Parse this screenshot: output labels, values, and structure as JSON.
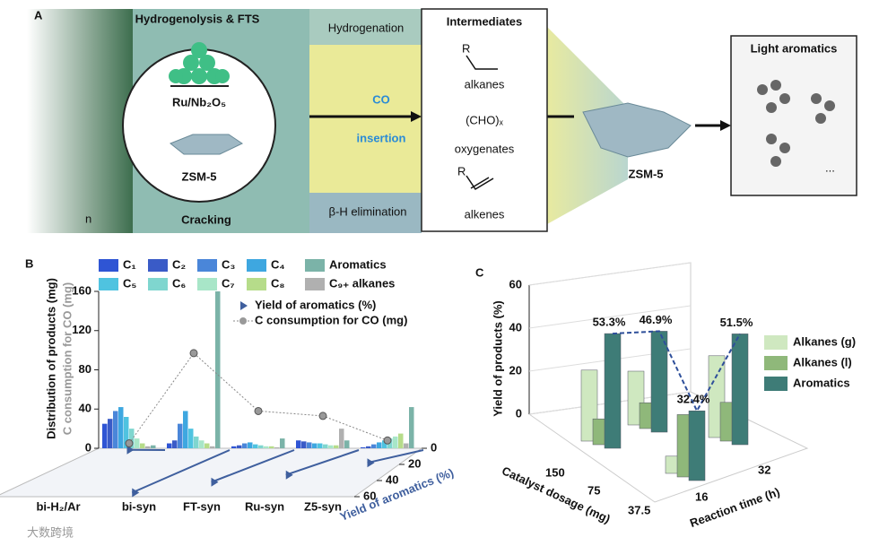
{
  "panel_a": {
    "label": "A",
    "top_left": "Hydrogenolysis & FTS",
    "catalyst": "Ru/Nb₂O₅",
    "zeolite": "ZSM-5",
    "bottom_left": "Cracking",
    "hydrogenation": "Hydrogenation",
    "co": "CO",
    "insertion": "insertion",
    "elimination": "β-H elimination",
    "polymer_n": "n",
    "intermediates": {
      "title": "Intermediates",
      "r1": "R",
      "alkanes": "alkanes",
      "cho": "(CHO)ₓ",
      "oxygenates": "oxygenates",
      "r2": "R",
      "alkenes": "alkenes"
    },
    "zsm": "ZSM-5",
    "aromatics": {
      "title": "Light aromatics",
      "more": "..."
    }
  },
  "panel_b": {
    "label": "B",
    "type": "bar3d",
    "ylabel": "Distribution of products (mg)",
    "ylabel2": "C consumption for CO (mg)",
    "ylim": [
      0,
      160
    ],
    "yticks": [
      0,
      40,
      80,
      120,
      160
    ],
    "zlabel": "Yield of aromatics (%)",
    "zlim": [
      0,
      60
    ],
    "zticks": [
      0,
      20,
      40,
      60
    ],
    "categories": [
      "bi-H₂/Ar",
      "bi-syn",
      "FT-syn",
      "Ru-syn",
      "Z5-syn"
    ],
    "series": [
      {
        "name": "C₁",
        "color": "#2f55d4",
        "values": [
          25,
          5,
          2,
          8,
          1
        ]
      },
      {
        "name": "C₂",
        "color": "#3a5bc7",
        "values": [
          30,
          8,
          3,
          7,
          2
        ]
      },
      {
        "name": "C₃",
        "color": "#4a86d9",
        "values": [
          38,
          25,
          5,
          6,
          4
        ]
      },
      {
        "name": "C₄",
        "color": "#3ea7e0",
        "values": [
          42,
          38,
          6,
          5,
          6
        ]
      },
      {
        "name": "C₅",
        "color": "#4fc3e0",
        "values": [
          32,
          20,
          4,
          5,
          8
        ]
      },
      {
        "name": "C₆",
        "color": "#7fd6cf",
        "values": [
          20,
          12,
          3,
          4,
          10
        ]
      },
      {
        "name": "C₇",
        "color": "#a8e6c8",
        "values": [
          10,
          8,
          2,
          3,
          12
        ]
      },
      {
        "name": "C₈",
        "color": "#b6dc8a",
        "values": [
          5,
          5,
          2,
          3,
          15
        ]
      },
      {
        "name": "C₉₊ alkanes",
        "color": "#b0b0b0",
        "values": [
          2,
          2,
          1,
          20,
          5
        ]
      },
      {
        "name": "Aromatics",
        "color": "#7bb3a8",
        "values": [
          3,
          160,
          10,
          8,
          42
        ]
      }
    ],
    "yield": {
      "name": "Yield of aromatics (%)",
      "color": "#3f5f9e",
      "values": [
        2,
        55,
        42,
        33,
        18
      ]
    },
    "consumption": {
      "name": "C consumption for CO (mg)",
      "color": "#888888",
      "values": [
        5,
        97,
        38,
        33,
        8
      ]
    }
  },
  "panel_c": {
    "label": "C",
    "type": "bar3d",
    "ylabel": "Yield of products (%)",
    "ylim": [
      0,
      60
    ],
    "yticks": [
      0,
      20,
      40,
      60
    ],
    "xlabel": "Catalyst dosage (mg)",
    "dosage_categories": [
      "150",
      "75",
      "37.5"
    ],
    "zlabel": "Reaction time (h)",
    "time_categories": [
      "16",
      "32"
    ],
    "series": [
      {
        "name": "Alkanes (g)",
        "color": "#cfe8c0",
        "values": [
          33,
          25,
          8,
          38
        ]
      },
      {
        "name": "Alkanes (l)",
        "color": "#8fb87a",
        "values": [
          12,
          12,
          29,
          18
        ]
      },
      {
        "name": "Aromatics",
        "color": "#3e7c77",
        "values": [
          53.3,
          46.9,
          32.4,
          51.5
        ],
        "value_labels": [
          "53.3%",
          "46.9%",
          "32.4%",
          "51.5%"
        ]
      }
    ]
  },
  "watermark": "大数跨境"
}
